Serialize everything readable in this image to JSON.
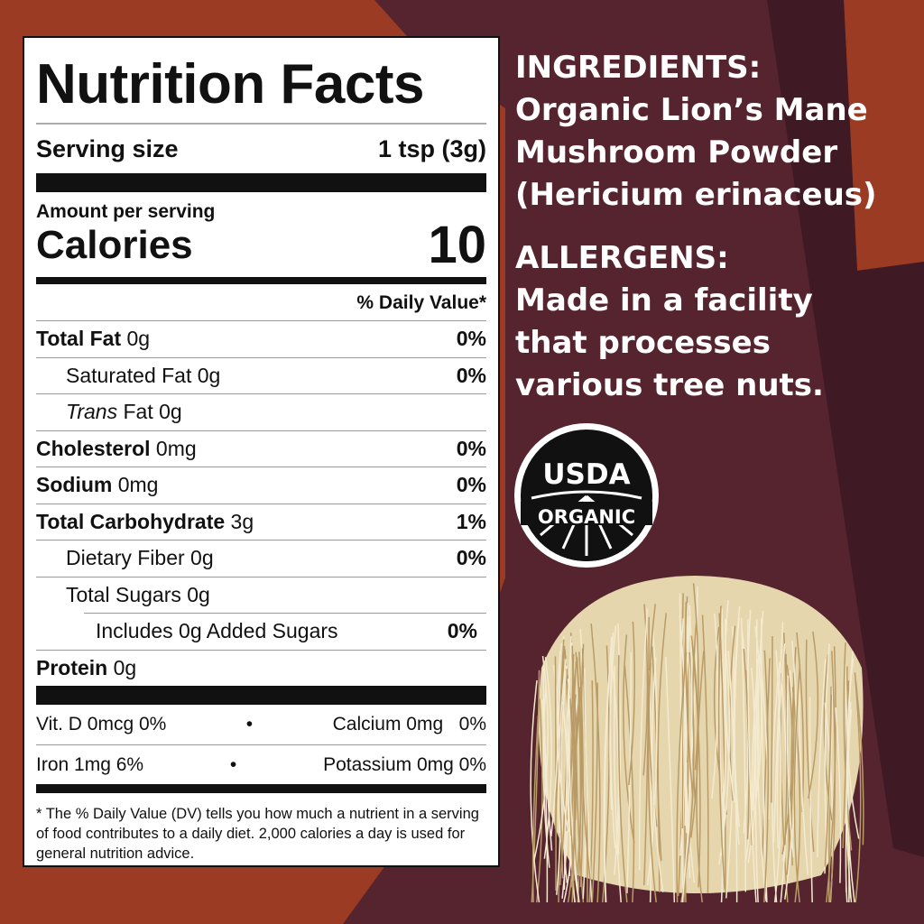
{
  "colors": {
    "background_orange": "#9b3b23",
    "plum": "#55242f",
    "dark_plum": "#3f1a24",
    "label_bg": "#ffffff"
  },
  "nutrition": {
    "title": "Nutrition Facts",
    "serving_label": "Serving size",
    "serving_value": "1 tsp (3g)",
    "amount_per_serving": "Amount per serving",
    "calories_label": "Calories",
    "calories_value": "10",
    "dv_header": "% Daily Value*",
    "rows": [
      {
        "name": "Total Fat",
        "amount": "0g",
        "dv": "0%"
      },
      {
        "name": "Saturated Fat",
        "amount": "0g",
        "dv": "0%"
      },
      {
        "name": "Trans",
        "name_rest": "Fat",
        "amount": "0g",
        "dv": ""
      },
      {
        "name": "Cholesterol",
        "amount": "0mg",
        "dv": "0%"
      },
      {
        "name": "Sodium",
        "amount": "0mg",
        "dv": "0%"
      },
      {
        "name": "Total Carbohydrate",
        "amount": "3g",
        "dv": "1%"
      },
      {
        "name": "Dietary Fiber",
        "amount": "0g",
        "dv": "0%"
      },
      {
        "name": "Total Sugars",
        "amount": "0g",
        "dv": ""
      },
      {
        "name": "Includes 0g Added Sugars",
        "amount": "",
        "dv": "0%"
      },
      {
        "name": "Protein",
        "amount": "0g",
        "dv": ""
      }
    ],
    "minerals": [
      {
        "left": "Vit. D 0mcg 0%",
        "bullet": "•",
        "right": "Calcium 0mg   0%"
      },
      {
        "left": "Iron 1mg 6%",
        "bullet": "•",
        "right": "Potassium 0mg 0%"
      }
    ],
    "footnote": "* The % Daily Value (DV) tells you how much a nutrient in a serving of food contributes to a daily diet. 2,000 calories a day is used for general nutrition advice."
  },
  "ingredients": {
    "heading": "INGREDIENTS:",
    "lines": [
      "Organic Lion’s Mane",
      "Mushroom Powder",
      "(Hericium erinaceus)"
    ]
  },
  "allergens": {
    "heading": "ALLERGENS:",
    "lines": [
      "Made in a facility",
      "that processes",
      "various tree nuts."
    ]
  },
  "seal": {
    "top": "USDA",
    "bottom": "ORGANIC"
  }
}
